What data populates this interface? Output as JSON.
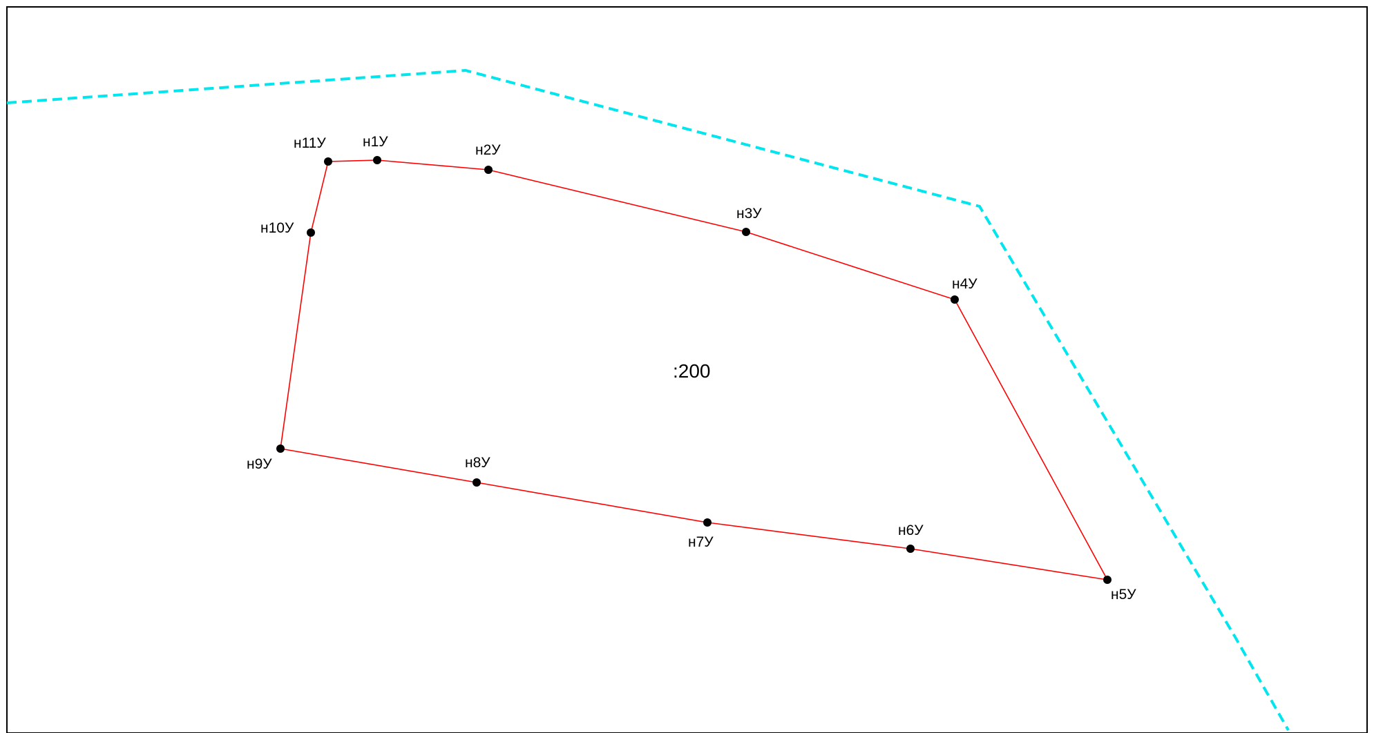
{
  "map": {
    "parcel": {
      "label": ":200",
      "boundary_color": "#ff0000"
    },
    "outer_boundary": {
      "style": "dashed",
      "color": "#00e5ee"
    },
    "points": [
      {
        "id": "p1",
        "label": "н1У"
      },
      {
        "id": "p2",
        "label": "н2У"
      },
      {
        "id": "p3",
        "label": "н3У"
      },
      {
        "id": "p4",
        "label": "н4У"
      },
      {
        "id": "p5",
        "label": "н5У"
      },
      {
        "id": "p6",
        "label": "н6У"
      },
      {
        "id": "p7",
        "label": "н7У"
      },
      {
        "id": "p8",
        "label": "н8У"
      },
      {
        "id": "p9",
        "label": "н9У"
      },
      {
        "id": "p10",
        "label": "н10У"
      },
      {
        "id": "p11",
        "label": "н11У"
      }
    ]
  }
}
